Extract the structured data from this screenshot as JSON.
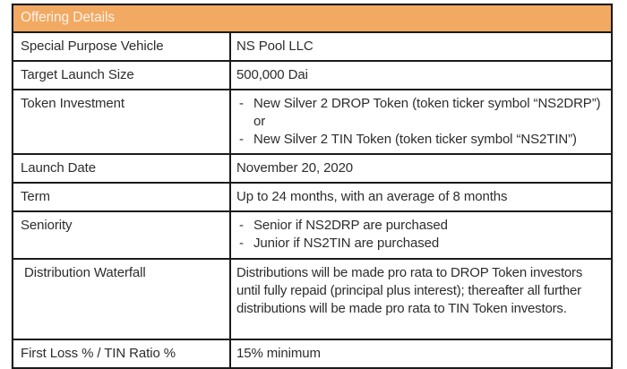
{
  "table": {
    "title": "Offering Details",
    "bullet": "-",
    "colors": {
      "header_bg": "#f2a962",
      "header_text": "#faf3ea",
      "border": "#1b1b1b",
      "text": "#2d2d2d"
    },
    "rows": [
      {
        "label": "Special Purpose Vehicle",
        "value": "NS Pool LLC"
      },
      {
        "label": "Target Launch Size",
        "value": "500,000 Dai"
      },
      {
        "label": "Token Investment",
        "items": [
          "New Silver 2 DROP Token (token ticker symbol “NS2DRP”) or",
          "New Silver 2 TIN Token (token ticker symbol “NS2TIN”)"
        ]
      },
      {
        "label": "Launch Date",
        "value": "November 20, 2020"
      },
      {
        "label": "Term",
        "value": "Up to 24 months, with an average of 8 months"
      },
      {
        "label": "Seniority",
        "items": [
          "Senior if NS2DRP are purchased",
          "Junior if NS2TIN are purchased"
        ]
      },
      {
        "label": "Distribution Waterfall",
        "value": "Distributions will be made pro rata to DROP Token investors until fully repaid (principal plus interest); thereafter all further distributions will be made pro rata to TIN Token investors."
      },
      {
        "label": "First Loss % / TIN Ratio %",
        "value": "15% minimum"
      }
    ]
  }
}
